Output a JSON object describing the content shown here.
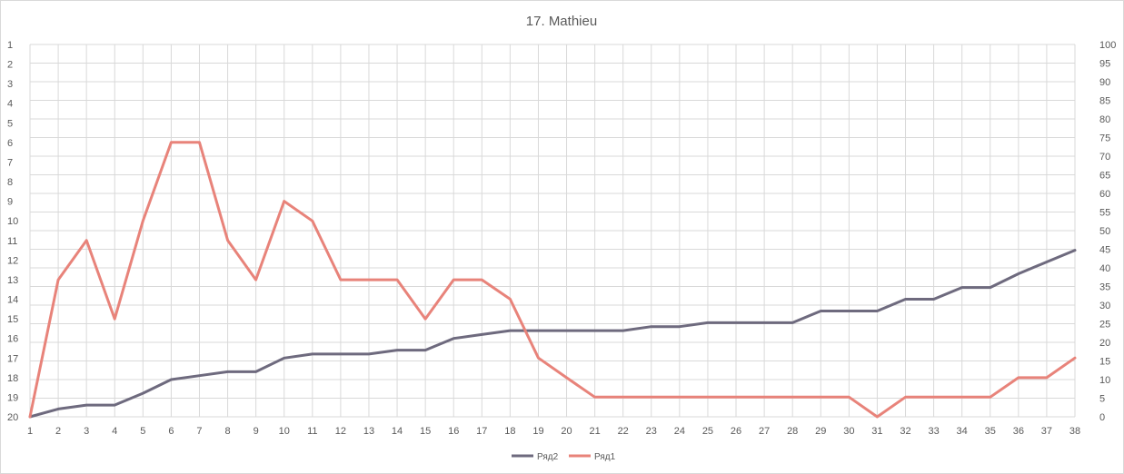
{
  "chart_data": {
    "type": "line",
    "title": "17. Mathieu",
    "x": [
      "1",
      "2",
      "3",
      "4",
      "5",
      "6",
      "7",
      "8",
      "9",
      "10",
      "11",
      "12",
      "13",
      "14",
      "15",
      "16",
      "17",
      "18",
      "19",
      "20",
      "21",
      "22",
      "23",
      "24",
      "25",
      "26",
      "27",
      "28",
      "29",
      "30",
      "31",
      "32",
      "33",
      "34",
      "35",
      "36",
      "37",
      "38"
    ],
    "left_axis": {
      "reversed": true,
      "range": [
        1,
        20
      ],
      "ticks": [
        "1",
        "2",
        "3",
        "4",
        "5",
        "6",
        "7",
        "8",
        "9",
        "10",
        "11",
        "12",
        "13",
        "14",
        "15",
        "16",
        "17",
        "18",
        "19",
        "20"
      ]
    },
    "right_axis": {
      "range": [
        0,
        100
      ],
      "step": 5,
      "ticks": [
        "0",
        "5",
        "10",
        "15",
        "20",
        "25",
        "30",
        "35",
        "40",
        "45",
        "50",
        "55",
        "60",
        "65",
        "70",
        "75",
        "80",
        "85",
        "90",
        "95",
        "100"
      ]
    },
    "grid": true,
    "legend_position": "bottom",
    "series": [
      {
        "name": "Ряд2",
        "axis": "left",
        "color": "#6e6a7e",
        "values": [
          20,
          19.6,
          19.4,
          19.4,
          18.8,
          18.1,
          17.9,
          17.7,
          17.7,
          17.0,
          16.8,
          16.8,
          16.8,
          16.6,
          16.6,
          16.0,
          15.8,
          15.6,
          15.6,
          15.6,
          15.6,
          15.6,
          15.4,
          15.4,
          15.2,
          15.2,
          15.2,
          15.2,
          14.6,
          14.6,
          14.6,
          14.0,
          14.0,
          13.4,
          13.4,
          12.7,
          12.1,
          11.5
        ]
      },
      {
        "name": "Ряд1",
        "axis": "right",
        "color": "#e8837a",
        "values": [
          0,
          36.8,
          47.4,
          26.3,
          52.6,
          73.7,
          73.7,
          47.4,
          36.8,
          57.9,
          52.6,
          36.8,
          36.8,
          36.8,
          26.3,
          36.8,
          36.8,
          31.6,
          15.8,
          10.5,
          5.3,
          5.3,
          5.3,
          5.3,
          5.3,
          5.3,
          5.3,
          5.3,
          5.3,
          5.3,
          0,
          5.3,
          5.3,
          5.3,
          5.3,
          10.5,
          10.5,
          15.8
        ]
      }
    ],
    "legend": [
      "Ряд2",
      "Ряд1"
    ]
  }
}
